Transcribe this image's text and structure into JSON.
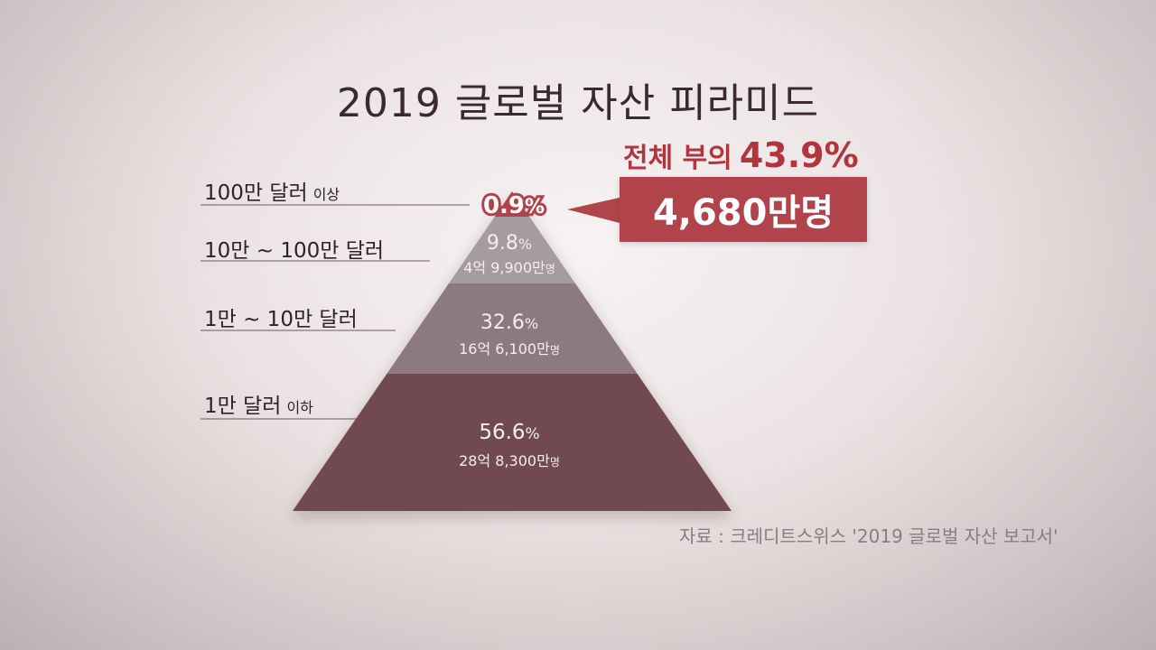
{
  "title": "2019 글로벌 자산 피라미드",
  "source": "자료 : 크레디트스위스 '2019 글로벌 자산 보고서'",
  "callout": {
    "lead": "전체 부의",
    "share": "43.9%",
    "people": "4,680만명"
  },
  "colors": {
    "tier1": "#b0434a",
    "tier2": "#a49ca1",
    "tier3": "#8d7a81",
    "tier4": "#6f4a53",
    "callout": "#b1444a"
  },
  "chart_data": {
    "type": "pyramid",
    "title": "2019 글로벌 자산 피라미드",
    "tiers": [
      {
        "label": "100만 달러",
        "label_sub": "이상",
        "percent_value": "0.9",
        "percent_unit": "%",
        "population": "4,680만명",
        "pop_num": "",
        "pop_unit": ""
      },
      {
        "label": "10만 ~ 100만 달러",
        "label_sub": "",
        "percent_value": "9.8",
        "percent_unit": "%",
        "population": "",
        "pop_num": "4억 9,900만",
        "pop_unit": "명"
      },
      {
        "label": "1만 ~ 10만 달러",
        "label_sub": "",
        "percent_value": "32.6",
        "percent_unit": "%",
        "population": "",
        "pop_num": "16억 6,100만",
        "pop_unit": "명"
      },
      {
        "label": "1만 달러",
        "label_sub": "이하",
        "percent_value": "56.6",
        "percent_unit": "%",
        "population": "",
        "pop_num": "28억 8,300만",
        "pop_unit": "명"
      }
    ]
  }
}
